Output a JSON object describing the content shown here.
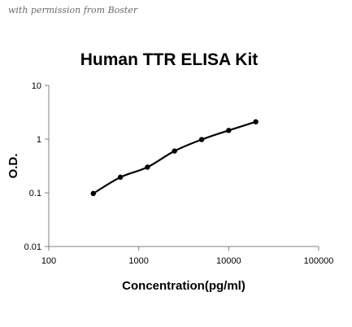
{
  "watermark": "with permission from Boster",
  "chart_data": {
    "type": "line",
    "title": "Human TTR ELISA Kit",
    "xlabel": "Concentration(pg/ml)",
    "ylabel": "O.D.",
    "x_scale": "log",
    "y_scale": "log",
    "xlim": [
      100,
      100000
    ],
    "ylim": [
      0.01,
      10
    ],
    "x_ticks": [
      100,
      1000,
      10000,
      100000
    ],
    "y_ticks": [
      0.01,
      0.1,
      1,
      10
    ],
    "x_tick_labels": [
      "100",
      "1000",
      "10000",
      "100000"
    ],
    "y_tick_labels": [
      "0.01",
      "0.1",
      "1",
      "10"
    ],
    "grid": false,
    "legend": "none",
    "series": [
      {
        "x": [
          312.5,
          625,
          1250,
          2500,
          5000,
          10000,
          20000
        ],
        "y": [
          0.097,
          0.195,
          0.3,
          0.6,
          0.98,
          1.45,
          2.1
        ]
      }
    ],
    "colors": {
      "line": "#000000",
      "marker": "#000000",
      "axis": "#808080"
    }
  }
}
